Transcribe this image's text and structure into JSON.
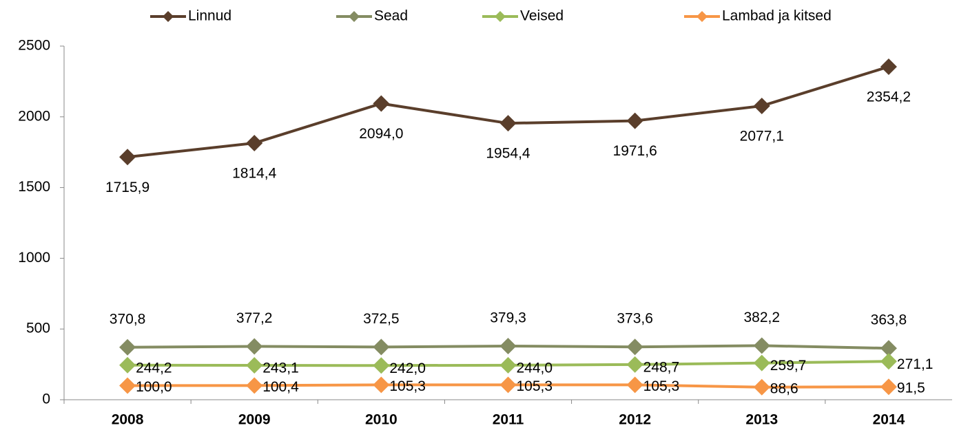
{
  "chart_data": {
    "type": "line",
    "categories": [
      "2008",
      "2009",
      "2010",
      "2011",
      "2012",
      "2013",
      "2014"
    ],
    "series": [
      {
        "name": "Linnud",
        "color": "#5a3e2b",
        "values": [
          1715.9,
          1814.4,
          2094.0,
          1954.4,
          1971.6,
          2077.1,
          2354.2
        ],
        "value_labels": [
          "1715,9",
          "1814,4",
          "2094,0",
          "1954,4",
          "1971,6",
          "2077,1",
          "2354,2"
        ]
      },
      {
        "name": "Sead",
        "color": "#848c62",
        "values": [
          370.8,
          377.2,
          372.5,
          379.3,
          373.6,
          382.2,
          363.8
        ],
        "value_labels": [
          "370,8",
          "377,2",
          "372,5",
          "379,3",
          "373,6",
          "382,2",
          "363,8"
        ]
      },
      {
        "name": "Veised",
        "color": "#9bbb59",
        "values": [
          244.2,
          243.1,
          242.0,
          244.0,
          248.7,
          259.7,
          271.1
        ],
        "value_labels": [
          "244,2",
          "243,1",
          "242,0",
          "244,0",
          "248,7",
          "259,7",
          "271,1"
        ]
      },
      {
        "name": "Lambad ja kitsed",
        "color": "#f79646",
        "values": [
          100.0,
          100.4,
          105.3,
          105.3,
          105.3,
          88.6,
          91.5
        ],
        "value_labels": [
          "100,0",
          "100,4",
          "105,3",
          "105,3",
          "105,3",
          "88,6",
          "91,5"
        ]
      }
    ],
    "ylim": [
      0,
      2500
    ],
    "yticks": [
      0,
      500,
      1000,
      1500,
      2000,
      2500
    ],
    "grid": false,
    "legend": "top"
  }
}
